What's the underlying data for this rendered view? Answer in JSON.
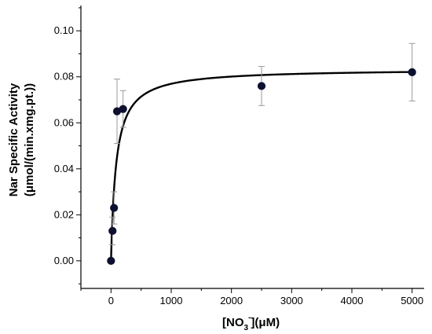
{
  "chart_data": {
    "type": "scatter",
    "title": "",
    "xlabel": {
      "main": "[NO",
      "sub": "3",
      "sup": "-",
      "tail": "](μM)"
    },
    "ylabel": {
      "line1": "Nar Specific Activity",
      "line2": "(μmol/(min.xmg.pt.))"
    },
    "xlim": [
      -500,
      5200
    ],
    "ylim": [
      -0.012,
      0.111
    ],
    "x_ticks": [
      0,
      1000,
      2000,
      3000,
      4000,
      5000
    ],
    "y_ticks": [
      0.0,
      0.02,
      0.04,
      0.06,
      0.08,
      0.1
    ],
    "y_tick_decimals": 2,
    "grid": false,
    "series": [
      {
        "points": [
          {
            "x": 0,
            "y": 0.0,
            "err": 0.0
          },
          {
            "x": 25,
            "y": 0.013,
            "err": 0.006
          },
          {
            "x": 50,
            "y": 0.023,
            "err": 0.007
          },
          {
            "x": 100,
            "y": 0.065,
            "err": 0.014
          },
          {
            "x": 200,
            "y": 0.066,
            "err": 0.008
          },
          {
            "x": 2500,
            "y": 0.076,
            "err": 0.0085
          },
          {
            "x": 5000,
            "y": 0.082,
            "err": 0.0125
          }
        ]
      }
    ],
    "fit_curve": {
      "model": "michaelis-menten",
      "vmax": 0.0835,
      "km": 85,
      "x_range": [
        0,
        5000
      ]
    },
    "colors": {
      "point": "#0e1030",
      "errbar": "#9a9a9a",
      "curve": "#000000"
    }
  }
}
